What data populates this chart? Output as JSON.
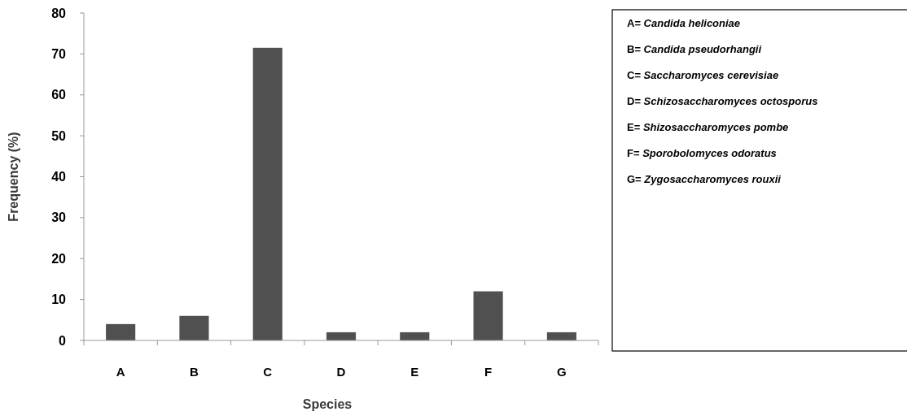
{
  "chart_data": {
    "type": "bar",
    "xlabel": "Species",
    "ylabel": "Frequency (%)",
    "categories": [
      "A",
      "B",
      "C",
      "D",
      "E",
      "F",
      "G"
    ],
    "values": [
      4,
      6,
      71.5,
      2,
      2,
      12,
      2
    ],
    "color": "#505050",
    "ylim": [
      0,
      80
    ],
    "yticks": [
      0,
      10,
      20,
      30,
      40,
      50,
      60,
      70,
      80
    ],
    "grid": false,
    "annotations": [
      "A= Candida heliconiae",
      "B= Candida pseudorhangii",
      "C= Saccharomyces cerevisiae",
      "D= Schizosaccharomyces octosporus",
      "E= Shizosaccharomyces pombe",
      "F= Sporobolomyces odoratus",
      "G= Zygosaccharomyces rouxii"
    ]
  }
}
